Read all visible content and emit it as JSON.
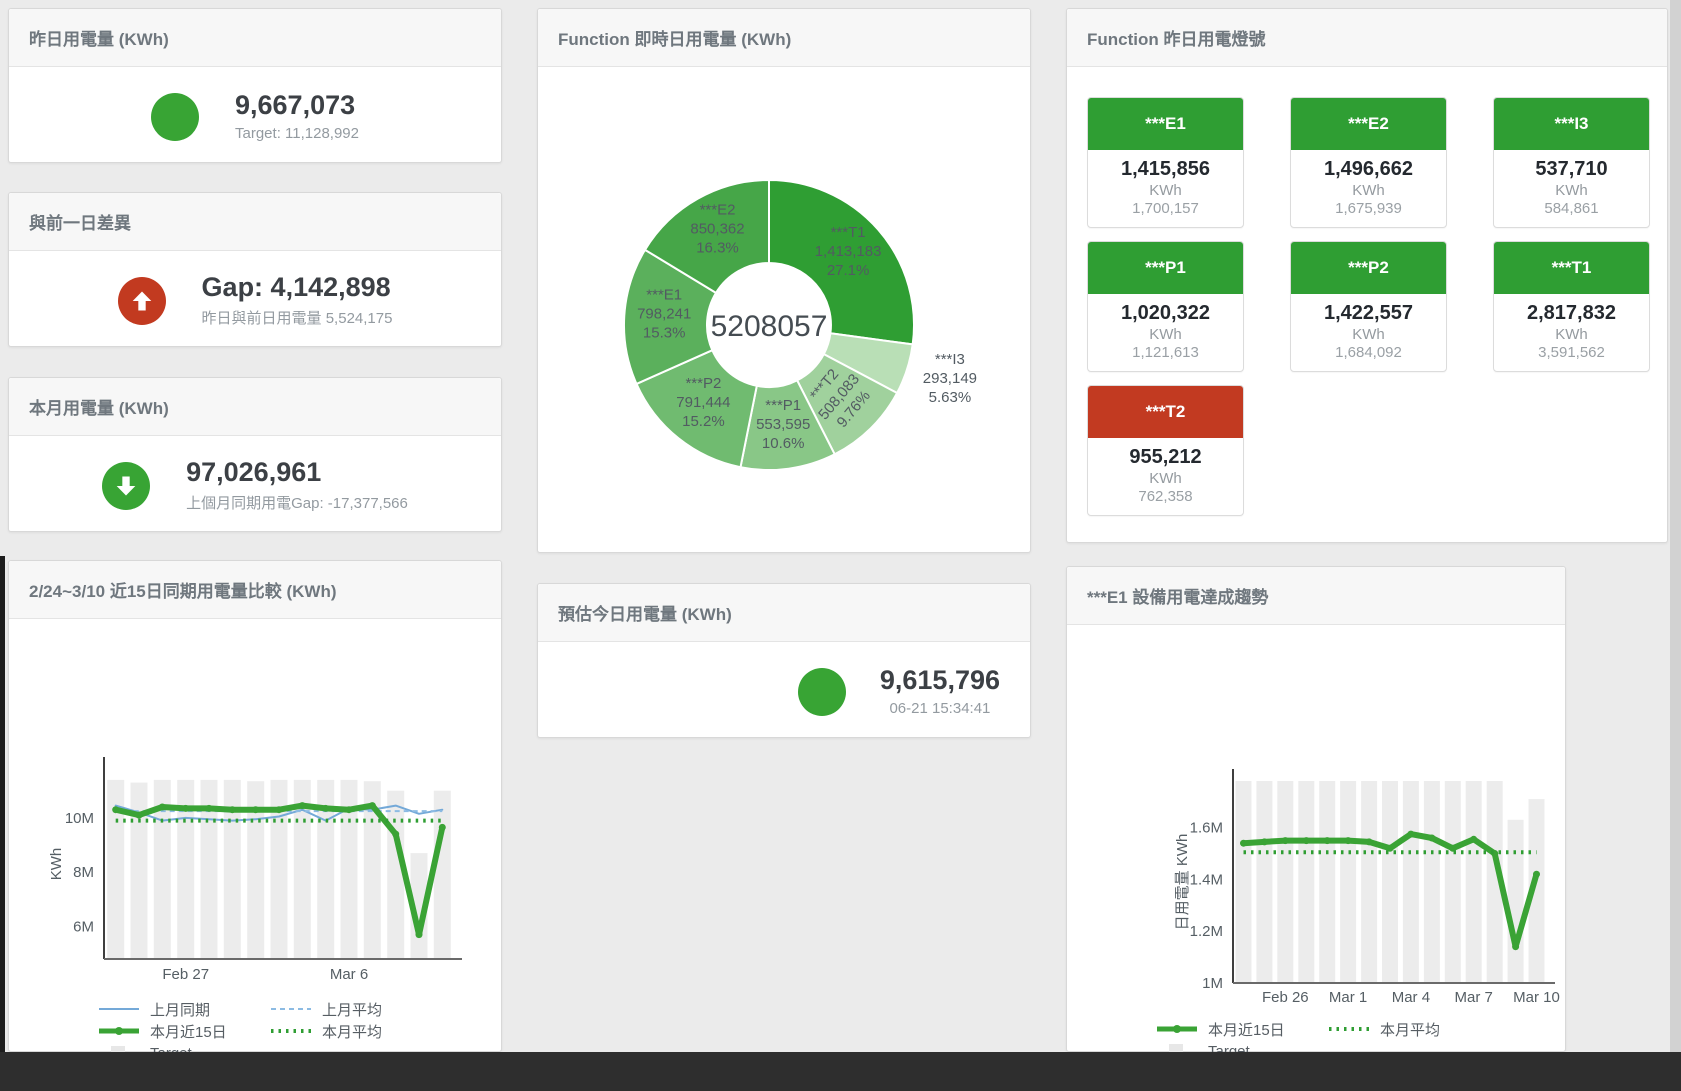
{
  "colors": {
    "green": "#38a434",
    "red": "#c23a20",
    "tile_green": "#2f9e33",
    "tile_red": "#c23a21",
    "bar_gray": "#ececec",
    "blue_line": "#74a9d8",
    "green_line": "#3aa335"
  },
  "cards": {
    "yesterday": {
      "title": "昨日用電量 (KWh)",
      "value": "9,667,073",
      "subtitle": "Target: 11,128,992",
      "indicator_color": "#38a434"
    },
    "day_gap": {
      "title": "與前一日差異",
      "value": "Gap: 4,142,898",
      "subtitle": "昨日與前日用電量 5,524,175",
      "indicator_color": "#c23a20"
    },
    "month": {
      "title": "本月用電量 (KWh)",
      "value": "97,026,961",
      "subtitle": "上個月同期用電Gap: -17,377,566",
      "indicator_color": "#38a434"
    },
    "today_estimate": {
      "title": "預估今日用電量 (KWh)",
      "value": "9,615,796",
      "subtitle": "06-21 15:34:41",
      "indicator_color": "#38a434"
    },
    "realtime_donut": {
      "title": "Function 即時日用電量 (KWh)"
    },
    "lights": {
      "title": "Function 昨日用電燈號",
      "unit": "KWh",
      "tiles": [
        {
          "label": "***E1",
          "value": "1,415,856",
          "target": "1,700,157",
          "status": "green"
        },
        {
          "label": "***E2",
          "value": "1,496,662",
          "target": "1,675,939",
          "status": "green"
        },
        {
          "label": "***I3",
          "value": "537,710",
          "target": "584,861",
          "status": "green"
        },
        {
          "label": "***P1",
          "value": "1,020,322",
          "target": "1,121,613",
          "status": "green"
        },
        {
          "label": "***P2",
          "value": "1,422,557",
          "target": "1,684,092",
          "status": "green"
        },
        {
          "label": "***T1",
          "value": "2,817,832",
          "target": "3,591,562",
          "status": "green"
        },
        {
          "label": "***T2",
          "value": "955,212",
          "target": "762,358",
          "status": "red"
        }
      ]
    },
    "compare": {
      "title": "2/24~3/10 近15日同期用電量比較 (KWh)"
    },
    "trend": {
      "title": "***E1 設備用電達成趨勢"
    }
  },
  "chart_data": [
    {
      "type": "pie",
      "title": "Function 即時日用電量 (KWh)",
      "center_label": "5208057",
      "legend_position": "none",
      "slices": [
        {
          "name": "***T1",
          "value": 1413183,
          "pct_label": "27.1%",
          "color": "#2f9e33"
        },
        {
          "name": "***I3",
          "value": 293149,
          "pct_label": "5.63%",
          "color": "#b9dfb6",
          "label_outside": true
        },
        {
          "name": "***T2",
          "value": 508083,
          "pct_label": "9.76%",
          "color": "#a0d19d",
          "label_rotate": -50
        },
        {
          "name": "***P1",
          "value": 553595,
          "pct_label": "10.6%",
          "color": "#89c787"
        },
        {
          "name": "***P2",
          "value": 791444,
          "pct_label": "15.2%",
          "color": "#70bb70"
        },
        {
          "name": "***E1",
          "value": 798241,
          "pct_label": "15.3%",
          "color": "#5bb05c"
        },
        {
          "name": "***E2",
          "value": 850362,
          "pct_label": "16.3%",
          "color": "#46a648"
        }
      ]
    },
    {
      "type": "line",
      "title": "2/24~3/10 近15日同期用電量比較 (KWh)",
      "ylabel": "KWh",
      "ylim": [
        4800000,
        11800000
      ],
      "grid": false,
      "legend_position": "bottom",
      "yticks": [
        {
          "v": 6000000,
          "label": "6M"
        },
        {
          "v": 8000000,
          "label": "8M"
        },
        {
          "v": 10000000,
          "label": "10M"
        }
      ],
      "categories": [
        "2/24",
        "2/25",
        "2/26",
        "2/27",
        "2/28",
        "3/1",
        "3/2",
        "3/3",
        "3/4",
        "3/5",
        "3/6",
        "3/7",
        "3/8",
        "3/9",
        "3/10"
      ],
      "xticks": [
        {
          "index": 3,
          "label": "Feb 27"
        },
        {
          "index": 10,
          "label": "Mar 6"
        }
      ],
      "series": [
        {
          "name": "上月同期",
          "type": "line",
          "style": "line-blue",
          "values": [
            10450000,
            10200000,
            9900000,
            10000000,
            9950000,
            9900000,
            9950000,
            10050000,
            10300000,
            9900000,
            10350000,
            10300000,
            10450000,
            10150000,
            10300000
          ]
        },
        {
          "name": "上月平均",
          "type": "line",
          "style": "dash-blue",
          "values": [
            10250000,
            10250000,
            10250000,
            10250000,
            10250000,
            10250000,
            10250000,
            10250000,
            10250000,
            10250000,
            10250000,
            10250000,
            10250000,
            10250000,
            10250000
          ]
        },
        {
          "name": "本月近15日",
          "type": "line",
          "style": "line-green-thick",
          "values": [
            10300000,
            10100000,
            10400000,
            10350000,
            10350000,
            10300000,
            10300000,
            10300000,
            10450000,
            10350000,
            10300000,
            10450000,
            9400000,
            5700000,
            9650000
          ]
        },
        {
          "name": "本月平均",
          "type": "line",
          "style": "dot-green",
          "values": [
            9900000,
            9900000,
            9900000,
            9900000,
            9900000,
            9900000,
            9900000,
            9900000,
            9900000,
            9900000,
            9900000,
            9900000,
            9900000,
            9900000,
            9900000
          ]
        },
        {
          "name": "Target",
          "type": "bar",
          "style": "bar-gray",
          "values": [
            11400000,
            11300000,
            11400000,
            11400000,
            11400000,
            11400000,
            11350000,
            11400000,
            11400000,
            11400000,
            11400000,
            11350000,
            11000000,
            8700000,
            11000000
          ]
        }
      ]
    },
    {
      "type": "line",
      "title": "***E1 設備用電達成趨勢",
      "ylabel": "日用電量 KWh",
      "ylim": [
        1000000,
        1780000
      ],
      "grid": false,
      "legend_position": "bottom",
      "yticks": [
        {
          "v": 1000000,
          "label": "1M"
        },
        {
          "v": 1200000,
          "label": "1.2M"
        },
        {
          "v": 1400000,
          "label": "1.4M"
        },
        {
          "v": 1600000,
          "label": "1.6M"
        }
      ],
      "categories": [
        "2/24",
        "2/25",
        "2/26",
        "2/27",
        "2/28",
        "3/1",
        "3/2",
        "3/3",
        "3/4",
        "3/5",
        "3/6",
        "3/7",
        "3/8",
        "3/9",
        "3/10"
      ],
      "xticks": [
        {
          "index": 2,
          "label": "Feb 26"
        },
        {
          "index": 5,
          "label": "Mar 1"
        },
        {
          "index": 8,
          "label": "Mar 4"
        },
        {
          "index": 11,
          "label": "Mar 7"
        },
        {
          "index": 14,
          "label": "Mar 10"
        }
      ],
      "series": [
        {
          "name": "本月近15日",
          "type": "line",
          "style": "line-green-thick",
          "values": [
            1540000,
            1545000,
            1550000,
            1550000,
            1550000,
            1550000,
            1545000,
            1520000,
            1575000,
            1560000,
            1520000,
            1555000,
            1500000,
            1140000,
            1420000
          ]
        },
        {
          "name": "本月平均",
          "type": "line",
          "style": "dot-green",
          "values": [
            1505000,
            1505000,
            1505000,
            1505000,
            1505000,
            1505000,
            1505000,
            1505000,
            1505000,
            1505000,
            1505000,
            1505000,
            1505000,
            1505000,
            1505000
          ]
        },
        {
          "name": "Target",
          "type": "bar",
          "style": "bar-gray",
          "values": [
            1780000,
            1780000,
            1780000,
            1780000,
            1780000,
            1780000,
            1780000,
            1780000,
            1780000,
            1780000,
            1780000,
            1780000,
            1780000,
            1630000,
            1710000
          ]
        }
      ]
    }
  ]
}
